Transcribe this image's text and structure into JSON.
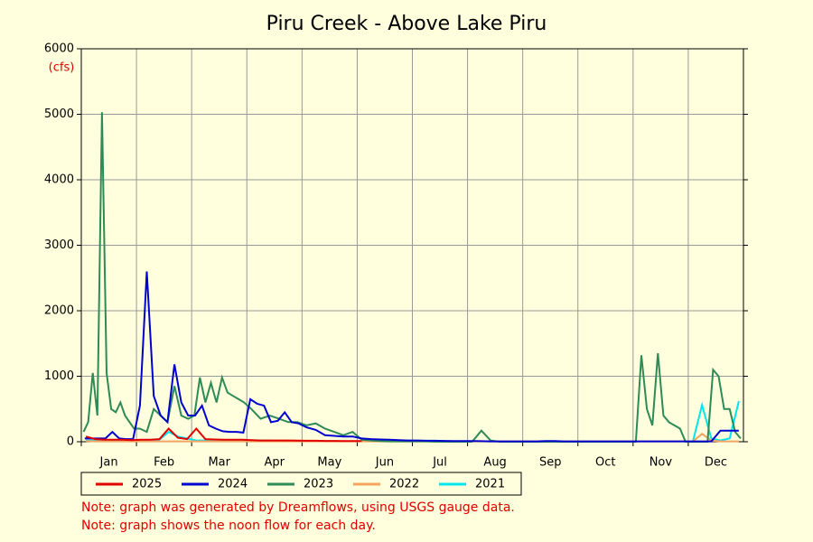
{
  "chart_data": {
    "type": "line",
    "title": "Piru Creek - Above Lake Piru",
    "y_unit": "(cfs)",
    "categories": [
      "Jan",
      "Feb",
      "Mar",
      "Apr",
      "May",
      "Jun",
      "Jul",
      "Aug",
      "Sep",
      "Oct",
      "Nov",
      "Dec"
    ],
    "ylim": [
      0,
      6000
    ],
    "yticks": [
      0,
      1000,
      2000,
      3000,
      4000,
      5000,
      6000
    ],
    "grid": true,
    "series": [
      {
        "name": "2025",
        "color": "#e00000",
        "values": [
          [
            80,
            40,
            30,
            30,
            30,
            25
          ],
          [
            30,
            30,
            40,
            200,
            60,
            40
          ],
          [
            200,
            40,
            35,
            30,
            30,
            30
          ],
          [
            25,
            20,
            20,
            20,
            20,
            18
          ],
          [
            15,
            15,
            12,
            12,
            10,
            10
          ],
          [
            10,
            null,
            null,
            null,
            null,
            null
          ],
          [
            null
          ],
          [
            null
          ],
          [
            null
          ],
          [
            null
          ],
          [
            null
          ],
          [
            null
          ]
        ]
      },
      {
        "name": "2024",
        "color": "#0000d0",
        "values": [
          [
            50,
            50,
            50,
            50,
            150,
            50,
            40,
            40
          ],
          [
            550,
            2600,
            700,
            400,
            300,
            1180,
            600,
            400
          ],
          [
            400,
            550,
            250,
            200,
            160,
            150,
            150,
            140
          ],
          [
            650,
            580,
            550,
            300,
            320,
            450,
            300,
            280
          ],
          [
            220,
            180,
            100,
            90,
            80,
            80
          ],
          [
            50,
            40,
            35,
            30,
            25,
            20
          ],
          [
            20,
            15,
            15,
            12,
            10,
            10
          ],
          [
            10,
            8,
            5,
            5,
            5,
            5
          ],
          [
            5,
            5,
            10,
            10,
            5,
            5
          ],
          [
            5,
            5,
            5,
            5,
            5,
            5
          ],
          [
            5,
            5,
            5,
            5,
            5,
            5
          ],
          [
            5,
            5,
            5,
            170,
            170,
            170
          ]
        ]
      },
      {
        "name": "2023",
        "color": "#2e8b57",
        "values": [
          [
            150,
            300,
            1050,
            400,
            5030,
            1050,
            500,
            450,
            600,
            400,
            300,
            200
          ],
          [
            200,
            150,
            500,
            400,
            300,
            850,
            400,
            350
          ],
          [
            400,
            980,
            600,
            900,
            600,
            980,
            750,
            700,
            650,
            600
          ],
          [
            500,
            350,
            400,
            350,
            300,
            300
          ],
          [
            250,
            280,
            200,
            150,
            100,
            150
          ],
          [
            30,
            20,
            10,
            5,
            5,
            5
          ],
          [
            5,
            5,
            0,
            0,
            0,
            0
          ],
          [
            0,
            170,
            20,
            0,
            0,
            0
          ],
          [
            0,
            0,
            0,
            0,
            0,
            0
          ],
          [
            0,
            0,
            0,
            0,
            0,
            0
          ],
          [
            0,
            1320,
            500,
            250,
            1350,
            400,
            300,
            250,
            200,
            0
          ],
          [
            0,
            0,
            0,
            0,
            1100,
            1000,
            500,
            500,
            150,
            50
          ]
        ]
      },
      {
        "name": "2022",
        "color": "#f4a460",
        "values": [
          [
            10,
            5,
            5,
            5,
            5,
            5
          ],
          [
            5,
            5,
            5,
            5,
            5,
            5
          ],
          [
            5,
            5,
            5,
            5,
            5,
            5
          ],
          [
            5,
            5,
            5,
            5,
            5,
            5
          ],
          [
            5,
            5,
            5,
            5,
            5,
            5
          ],
          [
            5,
            5,
            5,
            5,
            5,
            5
          ],
          [
            5,
            5,
            5,
            5,
            5,
            5
          ],
          [
            5,
            5,
            5,
            5,
            5,
            5
          ],
          [
            5,
            5,
            5,
            5,
            5,
            5
          ],
          [
            5,
            5,
            5,
            5,
            5,
            5
          ],
          [
            5,
            5,
            5,
            5,
            5,
            5
          ],
          [
            5,
            120,
            20,
            5,
            5,
            5
          ]
        ]
      },
      {
        "name": "2021",
        "color": "#00e5ee",
        "values": [
          [
            20,
            20,
            20,
            20,
            20,
            20
          ],
          [
            20,
            20,
            30,
            150,
            80,
            50
          ],
          [
            20,
            20,
            20,
            20,
            20,
            20
          ],
          [
            20,
            20,
            20,
            null,
            null,
            null
          ],
          [
            null
          ],
          [
            null
          ],
          [
            null
          ],
          [
            null
          ],
          [
            null
          ],
          [
            null
          ],
          [
            null
          ],
          [
            0,
            560,
            50,
            20,
            50,
            620
          ]
        ]
      }
    ],
    "notes": [
      "Note: graph was generated by Dreamflows, using USGS gauge data.",
      "Note: graph shows the noon flow for each day."
    ]
  }
}
